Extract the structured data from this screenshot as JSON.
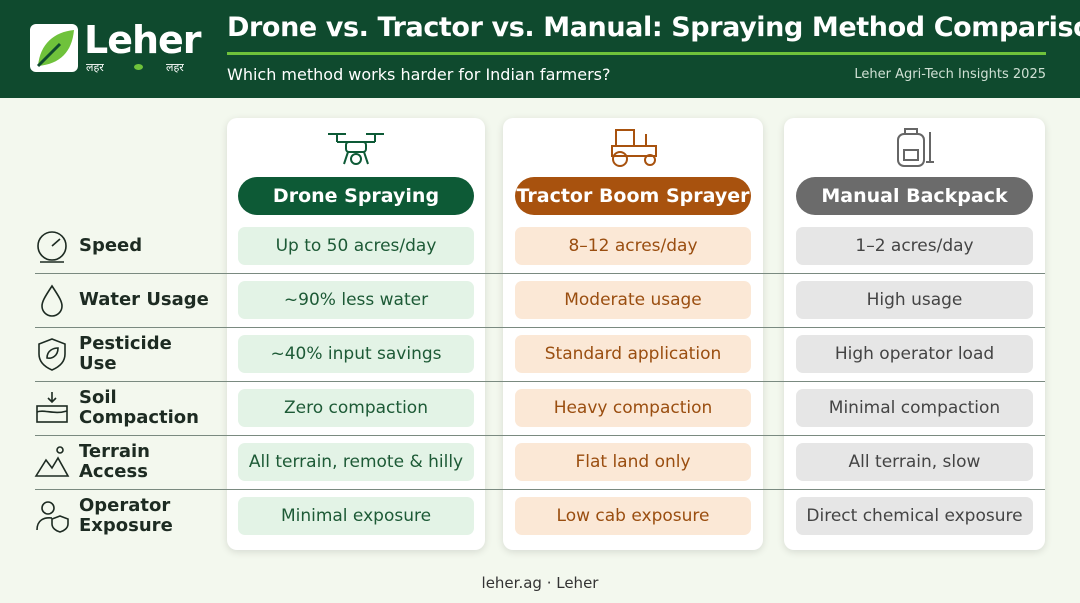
{
  "header": {
    "logo": "Leher",
    "logo_sub": [
      "लहर",
      "लहर"
    ],
    "title": "Drone vs. Tractor vs. Manual: Spraying Method Comparison",
    "subtitle": "Which method works harder for Indian farmers?",
    "credit": "Leher Agri-Tech Insights 2025"
  },
  "table": {
    "columns": [
      "Drone Spraying",
      "Tractor Boom Sprayer",
      "Manual Backpack"
    ],
    "rows": [
      {
        "label": "Speed",
        "cells": [
          "Up to 50 acres/day",
          "8–12 acres/day",
          "1–2 acres/day"
        ]
      },
      {
        "label": "Water Usage",
        "cells": [
          "~90% less water",
          "Moderate usage",
          "High usage"
        ]
      },
      {
        "label": "Pesticide Use",
        "cells": [
          "~40% input savings",
          "Standard application",
          "High operator load"
        ]
      },
      {
        "label": "Soil Compaction",
        "cells": [
          "Zero compaction",
          "Heavy compaction",
          "Minimal compaction"
        ]
      },
      {
        "label": "Terrain Access",
        "cells": [
          "All terrain, remote & hilly",
          "Flat land only",
          "All terrain, slow"
        ]
      },
      {
        "label": "Operator Exposure",
        "cells": [
          "Minimal exposure",
          "Low cab exposure",
          "Direct chemical exposure"
        ]
      }
    ]
  },
  "footer": "leher.ag · Leher"
}
